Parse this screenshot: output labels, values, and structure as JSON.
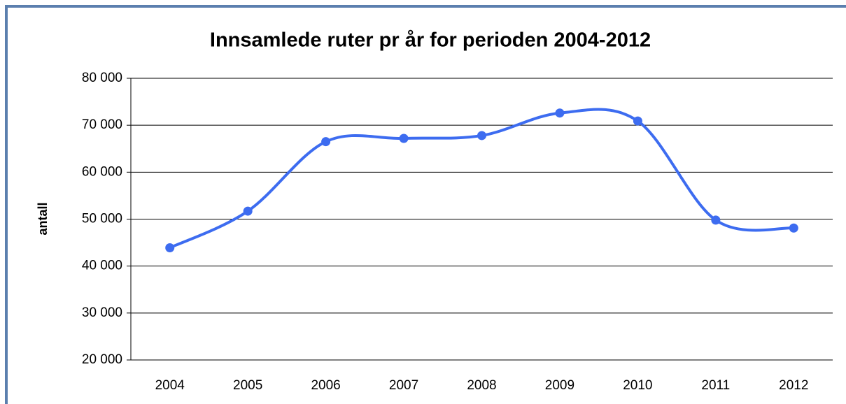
{
  "chart_data": {
    "type": "line",
    "title": "Innsamlede ruter pr år for perioden 2004-2012",
    "y_label": "antall",
    "categories": [
      "2004",
      "2005",
      "2006",
      "2007",
      "2008",
      "2009",
      "2010",
      "2011",
      "2012"
    ],
    "series": [
      {
        "name": "antall",
        "color": "#3d6cf0",
        "values": [
          43900,
          51700,
          66500,
          67200,
          67800,
          72600,
          70900,
          49800,
          48100
        ]
      }
    ],
    "ylim": [
      20000,
      80000
    ],
    "yticks": [
      {
        "value": 20000,
        "label": "20 000"
      },
      {
        "value": 30000,
        "label": "30 000"
      },
      {
        "value": 40000,
        "label": "40 000"
      },
      {
        "value": 50000,
        "label": "50 000"
      },
      {
        "value": 60000,
        "label": "60 000"
      },
      {
        "value": 70000,
        "label": "70 000"
      },
      {
        "value": 80000,
        "label": "80 000"
      }
    ],
    "grid": true,
    "smooth": true
  }
}
